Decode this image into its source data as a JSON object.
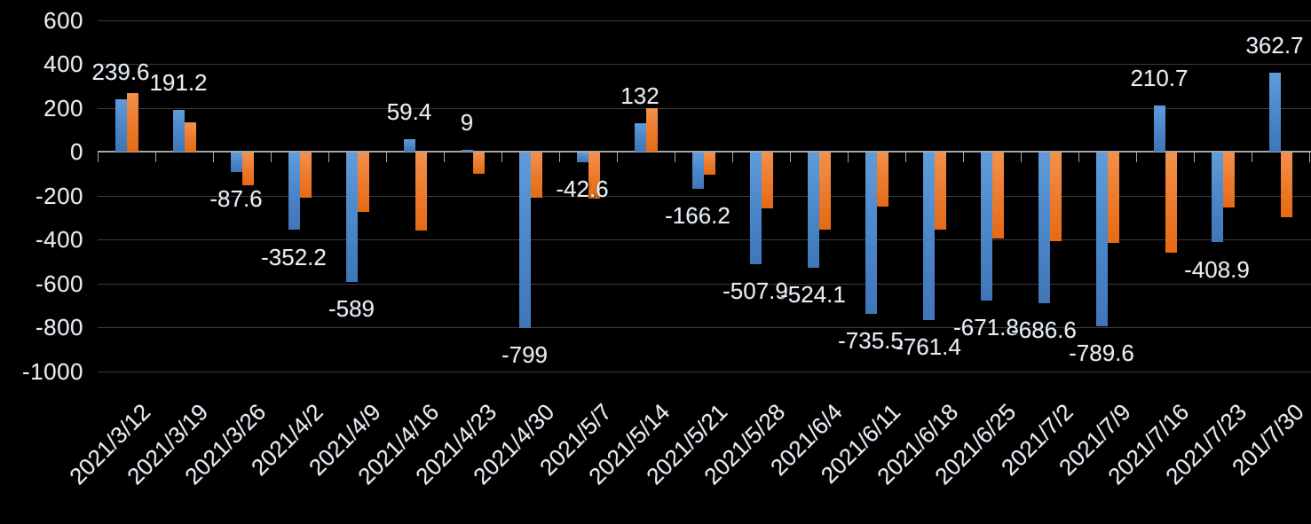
{
  "chart_data": {
    "type": "bar",
    "title": "",
    "legend": "none",
    "background": "#000000",
    "grid": true,
    "categories": [
      "2021/3/12",
      "2021/3/19",
      "2021/3/26",
      "2021/4/2",
      "2021/4/9",
      "2021/4/16",
      "2021/4/23",
      "2021/4/30",
      "2021/5/7",
      "2021/5/14",
      "2021/5/21",
      "2021/5/28",
      "2021/6/4",
      "2021/6/11",
      "2021/6/18",
      "2021/6/25",
      "2021/7/2",
      "2021/7/9",
      "2021/7/16",
      "2021/7/23",
      "201/7/30"
    ],
    "series": [
      {
        "name": "series-blue",
        "color": "#4d89cb",
        "values": [
          239.6,
          191.2,
          -87.6,
          -352.2,
          -589,
          59.4,
          9,
          -799,
          -42.6,
          132,
          -166.2,
          -507.9,
          -524.1,
          -735.5,
          -761.4,
          -671.8,
          -686.6,
          -789.6,
          210.7,
          -408.9,
          362.7
        ]
      },
      {
        "name": "series-orange",
        "color": "#ed7d31",
        "values_estimated_from_pixels": true,
        "values": [
          270,
          135,
          -150,
          -205,
          -270,
          -355,
          -95,
          -205,
          -210,
          200,
          -100,
          -255,
          -350,
          -245,
          -350,
          -390,
          -405,
          -410,
          -455,
          -250,
          -295
        ]
      }
    ],
    "data_labels": {
      "labeled_series": "series-blue",
      "texts": [
        "239.6",
        "191.2",
        "-87.6",
        "-352.2",
        "-589",
        "59.4",
        "9",
        "-799",
        "-42.6",
        "132",
        "-166.2",
        "-507.9",
        "-524.1",
        "-735.5",
        "-761.4",
        "-671.8",
        "-686.6",
        "-789.6",
        "210.7",
        "-408.9",
        "362.7"
      ]
    },
    "y_axis": {
      "min": -1000,
      "max": 600,
      "tick_step": 200,
      "ticks": [
        600,
        400,
        200,
        0,
        -200,
        -400,
        -600,
        -800,
        -1000
      ]
    },
    "x_axis": {
      "label_rotation_deg": -45,
      "tick_marks": "between-categories"
    },
    "colors": {
      "text": "#e7edf5",
      "gridline": "#3b3b3b",
      "axis_line": "#a6a6a6"
    }
  }
}
